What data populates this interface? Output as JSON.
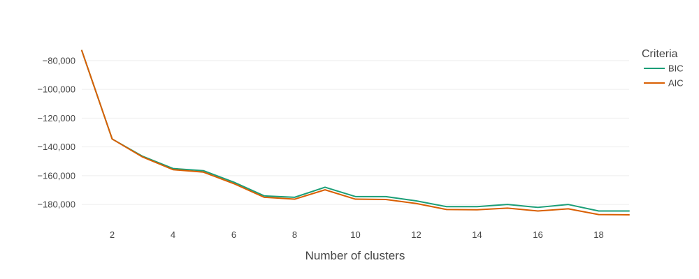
{
  "chart_data": {
    "type": "line",
    "title": "",
    "xlabel": "Number of clusters",
    "ylabel": "",
    "x": [
      1,
      2,
      3,
      4,
      5,
      6,
      7,
      8,
      9,
      10,
      11,
      12,
      13,
      14,
      15,
      16,
      17,
      18,
      19
    ],
    "xlim": [
      1,
      19
    ],
    "ylim": [
      -193000,
      -66000
    ],
    "x_ticks": [
      2,
      4,
      6,
      8,
      10,
      12,
      14,
      16,
      18
    ],
    "x_tick_labels": [
      "2",
      "4",
      "6",
      "8",
      "10",
      "12",
      "14",
      "16",
      "18"
    ],
    "y_ticks": [
      -80000,
      -100000,
      -120000,
      -140000,
      -160000,
      -180000
    ],
    "y_tick_labels": [
      "−80,000",
      "−100,000",
      "−120,000",
      "−140,000",
      "−160,000",
      "−180,000"
    ],
    "grid": true,
    "legend": {
      "title": "Criteria",
      "position": "top-right"
    },
    "series": [
      {
        "name": "BIC",
        "color": "#1b9e77",
        "values": [
          -73000,
          -134500,
          -146500,
          -155000,
          -156500,
          -164500,
          -174000,
          -175000,
          -168000,
          -174500,
          -174500,
          -177500,
          -181500,
          -181500,
          -180000,
          -182000,
          -180000,
          -184500,
          -184500
        ]
      },
      {
        "name": "AIC",
        "color": "#d95f02",
        "values": [
          -73000,
          -134500,
          -147000,
          -155800,
          -157500,
          -165500,
          -175000,
          -176300,
          -169800,
          -176300,
          -176500,
          -179300,
          -183500,
          -183700,
          -182500,
          -184500,
          -183000,
          -187000,
          -187200
        ]
      }
    ]
  }
}
